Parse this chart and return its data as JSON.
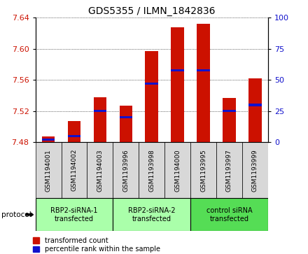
{
  "title": "GDS5355 / ILMN_1842836",
  "samples": [
    "GSM1194001",
    "GSM1194002",
    "GSM1194003",
    "GSM1193996",
    "GSM1193998",
    "GSM1194000",
    "GSM1193995",
    "GSM1193997",
    "GSM1193999"
  ],
  "red_values": [
    7.487,
    7.507,
    7.538,
    7.527,
    7.597,
    7.628,
    7.632,
    7.537,
    7.562
  ],
  "blue_values": [
    2.0,
    5.0,
    25.0,
    20.0,
    47.0,
    58.0,
    58.0,
    25.0,
    30.0
  ],
  "ymin": 7.48,
  "ymax": 7.64,
  "y2min": 0,
  "y2max": 100,
  "yticks": [
    7.48,
    7.52,
    7.56,
    7.6,
    7.64
  ],
  "y2ticks": [
    0,
    25,
    50,
    75,
    100
  ],
  "groups": [
    {
      "label": "RBP2-siRNA-1\ntransfected",
      "start": 0,
      "end": 3,
      "color": "#aaffaa"
    },
    {
      "label": "RBP2-siRNA-2\ntransfected",
      "start": 3,
      "end": 6,
      "color": "#aaffaa"
    },
    {
      "label": "control siRNA\ntransfected",
      "start": 6,
      "end": 9,
      "color": "#55dd55"
    }
  ],
  "protocol_label": "protocol",
  "bar_width": 0.5,
  "red_color": "#cc1100",
  "blue_color": "#1111cc",
  "bg_color": "#d8d8d8",
  "plot_bg": "#ffffff",
  "legend_red": "transformed count",
  "legend_blue": "percentile rank within the sample"
}
